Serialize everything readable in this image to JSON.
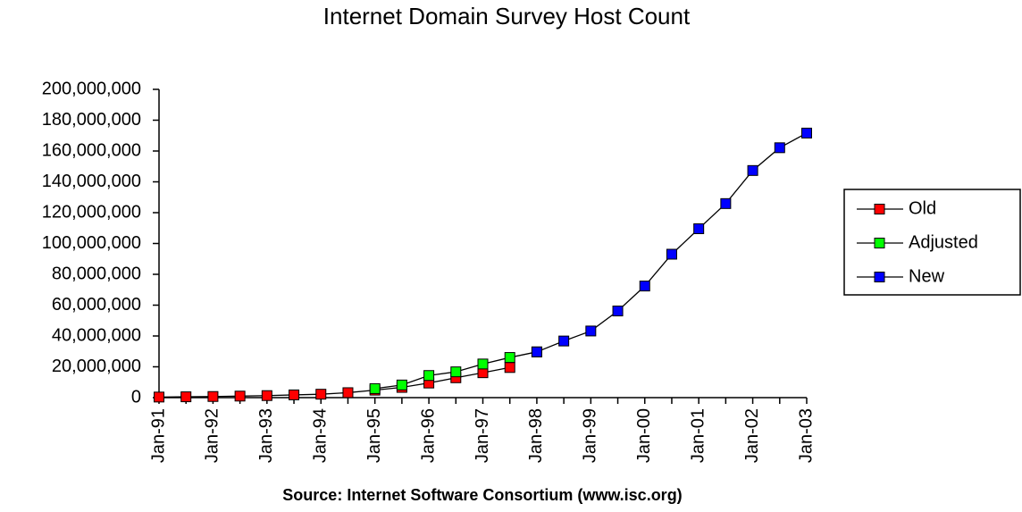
{
  "chart_data": {
    "type": "line",
    "title": "Internet Domain Survey Host Count",
    "x_label": "Source: Internet Software Consortium (www.isc.org)",
    "categories": [
      "Jan-91",
      null,
      "Jan-92",
      null,
      "Jan-93",
      null,
      "Jan-94",
      null,
      "Jan-95",
      null,
      "Jan-96",
      null,
      "Jan-97",
      null,
      "Jan-98",
      null,
      "Jan-99",
      null,
      "Jan-00",
      null,
      "Jan-01",
      null,
      "Jan-02",
      null,
      "Jan-03"
    ],
    "series": [
      {
        "name": "Old",
        "color": "#ff0000",
        "values": [
          376000,
          535000,
          727000,
          992000,
          1313000,
          1776000,
          2217000,
          3212000,
          4852000,
          6642000,
          9472000,
          12881000,
          16146000,
          19540000,
          null,
          null,
          null,
          null,
          null,
          null,
          null,
          null,
          null,
          null,
          null
        ]
      },
      {
        "name": "Adjusted",
        "color": "#00ff00",
        "values": [
          null,
          null,
          null,
          null,
          null,
          null,
          null,
          null,
          5846000,
          8200000,
          14352000,
          16729000,
          21819000,
          26053000,
          29670000,
          null,
          null,
          null,
          null,
          null,
          null,
          null,
          null,
          null,
          null
        ]
      },
      {
        "name": "New",
        "color": "#0000ff",
        "values": [
          null,
          null,
          null,
          null,
          null,
          null,
          null,
          null,
          null,
          null,
          null,
          null,
          null,
          null,
          29670000,
          36739000,
          43230000,
          56218000,
          72398092,
          93047785,
          109574429,
          125888197,
          147344723,
          162128493,
          171638297
        ]
      }
    ],
    "ylim": [
      0,
      200000000
    ],
    "yticks": [
      0,
      {
        "value": 20000000,
        "label": "20,000,000"
      },
      {
        "value": 40000000,
        "label": "40,000,000"
      },
      {
        "value": 60000000,
        "label": "60,000,000"
      },
      {
        "value": 80000000,
        "label": "80,000,000"
      },
      {
        "value": 100000000,
        "label": "100,000,000"
      },
      {
        "value": 120000000,
        "label": "120,000,000"
      },
      {
        "value": 140000000,
        "label": "140,000,000"
      },
      {
        "value": 160000000,
        "label": "160,000,000"
      },
      {
        "value": 180000000,
        "label": "180,000,000"
      },
      {
        "value": 200000000,
        "label": "200,000,000"
      }
    ],
    "legend": "right"
  }
}
